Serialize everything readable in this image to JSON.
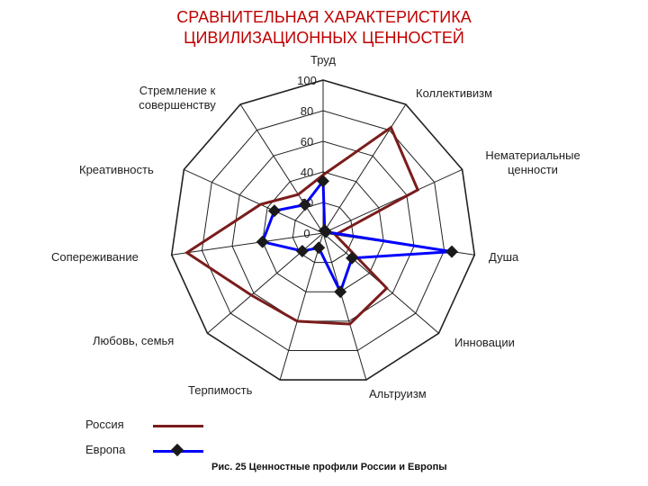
{
  "title": {
    "line1": "СРАВНИТЕЛЬНАЯ ХАРАКТЕРИСТИКА",
    "line2": "ЦИВИЛИЗАЦИОННЫХ ЦЕННОСТЕЙ"
  },
  "caption": "Рис. 25 Ценностные профили России и Европы",
  "chart_data": {
    "type": "radar",
    "axes": [
      "Труд",
      "Коллективизм",
      "Нематериальные ценности",
      "Душа",
      "Инновации",
      "Альтруизм",
      "Терпимость",
      "Любовь, семья",
      "Сопереживание",
      "Креативность",
      "Стремление к совершенству"
    ],
    "axis_label_lines": [
      [
        "Труд"
      ],
      [
        "Коллективизм"
      ],
      [
        "Нематериальные",
        "ценности"
      ],
      [
        "Душа"
      ],
      [
        "Инновации"
      ],
      [
        "Альтруизм"
      ],
      [
        "Терпимость"
      ],
      [
        "Любовь, семья"
      ],
      [
        "Сопереживание"
      ],
      [
        "Креативность"
      ],
      [
        "Стремление к",
        "совершенству"
      ]
    ],
    "rlim": [
      0,
      100
    ],
    "ticks": [
      "0",
      "20",
      "40",
      "60",
      "80",
      "100"
    ],
    "grid": true,
    "legend_position": "bottom-left",
    "series": [
      {
        "name": "Россия",
        "color": "#7b1c1c",
        "marker": "none",
        "values": [
          38,
          82,
          68,
          8,
          55,
          62,
          60,
          62,
          90,
          45,
          30
        ]
      },
      {
        "name": "Европа",
        "color": "#0000ff",
        "marker": "diamond",
        "values": [
          34,
          2,
          2,
          85,
          25,
          40,
          10,
          18,
          40,
          35,
          22
        ]
      }
    ]
  }
}
